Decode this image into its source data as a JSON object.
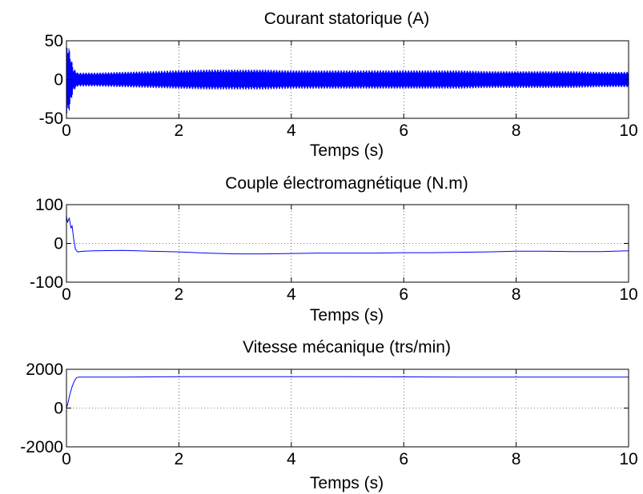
{
  "chart_data": [
    {
      "type": "line",
      "title": "Courant statorique (A)",
      "xlabel": "Temps (s)",
      "ylabel": "",
      "xlim": [
        0,
        10
      ],
      "ylim": [
        -50,
        50
      ],
      "xticks": [
        0,
        2,
        4,
        6,
        8,
        10
      ],
      "yticks": [
        -50,
        0,
        50
      ],
      "grid": true,
      "series": [
        {
          "color": "#0000ff",
          "kind": "oscillation",
          "x": [
            0,
            0.02,
            0.05,
            0.08,
            0.12,
            0.2,
            0.5,
            1,
            1.5,
            2,
            2.5,
            3,
            3.5,
            4,
            4.5,
            5,
            5.5,
            6,
            6.5,
            7,
            7.5,
            8,
            8.5,
            9,
            9.5,
            10
          ],
          "amplitude": [
            45,
            48,
            40,
            30,
            15,
            9,
            9,
            10,
            11,
            12,
            13,
            13,
            13,
            12,
            12,
            12,
            12,
            12,
            12,
            12,
            11,
            11,
            11,
            11,
            10,
            10
          ]
        }
      ]
    },
    {
      "type": "line",
      "title": "Couple électromagnétique (N.m)",
      "xlabel": "Temps (s)",
      "ylabel": "",
      "xlim": [
        0,
        10
      ],
      "ylim": [
        -100,
        100
      ],
      "xticks": [
        0,
        2,
        4,
        6,
        8,
        10
      ],
      "yticks": [
        -100,
        0,
        100
      ],
      "grid": true,
      "series": [
        {
          "color": "#0000ff",
          "x": [
            0,
            0.02,
            0.05,
            0.08,
            0.1,
            0.13,
            0.16,
            0.2,
            0.3,
            0.5,
            1,
            1.5,
            2,
            2.5,
            3,
            3.5,
            4,
            4.5,
            5,
            5.5,
            6,
            6.5,
            7,
            7.5,
            8,
            8.5,
            9,
            9.5,
            10
          ],
          "y": [
            70,
            55,
            65,
            40,
            45,
            10,
            -15,
            -22,
            -20,
            -19,
            -18,
            -20,
            -22,
            -25,
            -27,
            -27,
            -26,
            -25,
            -25,
            -25,
            -24,
            -24,
            -23,
            -22,
            -20,
            -20,
            -21,
            -21,
            -19
          ]
        }
      ]
    },
    {
      "type": "line",
      "title": "Vitesse mécanique (trs/min)",
      "xlabel": "Temps (s)",
      "ylabel": "",
      "xlim": [
        0,
        10
      ],
      "ylim": [
        -2000,
        2000
      ],
      "xticks": [
        0,
        2,
        4,
        6,
        8,
        10
      ],
      "yticks": [
        -2000,
        0,
        2000
      ],
      "grid": true,
      "series": [
        {
          "color": "#0000ff",
          "x": [
            0,
            0.03,
            0.06,
            0.1,
            0.14,
            0.18,
            0.22,
            0.3,
            0.5,
            1,
            2,
            3,
            4,
            5,
            6,
            7,
            8,
            9,
            10
          ],
          "y": [
            0,
            300,
            700,
            1100,
            1400,
            1570,
            1600,
            1600,
            1600,
            1600,
            1620,
            1620,
            1620,
            1620,
            1610,
            1600,
            1600,
            1600,
            1600
          ]
        }
      ]
    }
  ]
}
